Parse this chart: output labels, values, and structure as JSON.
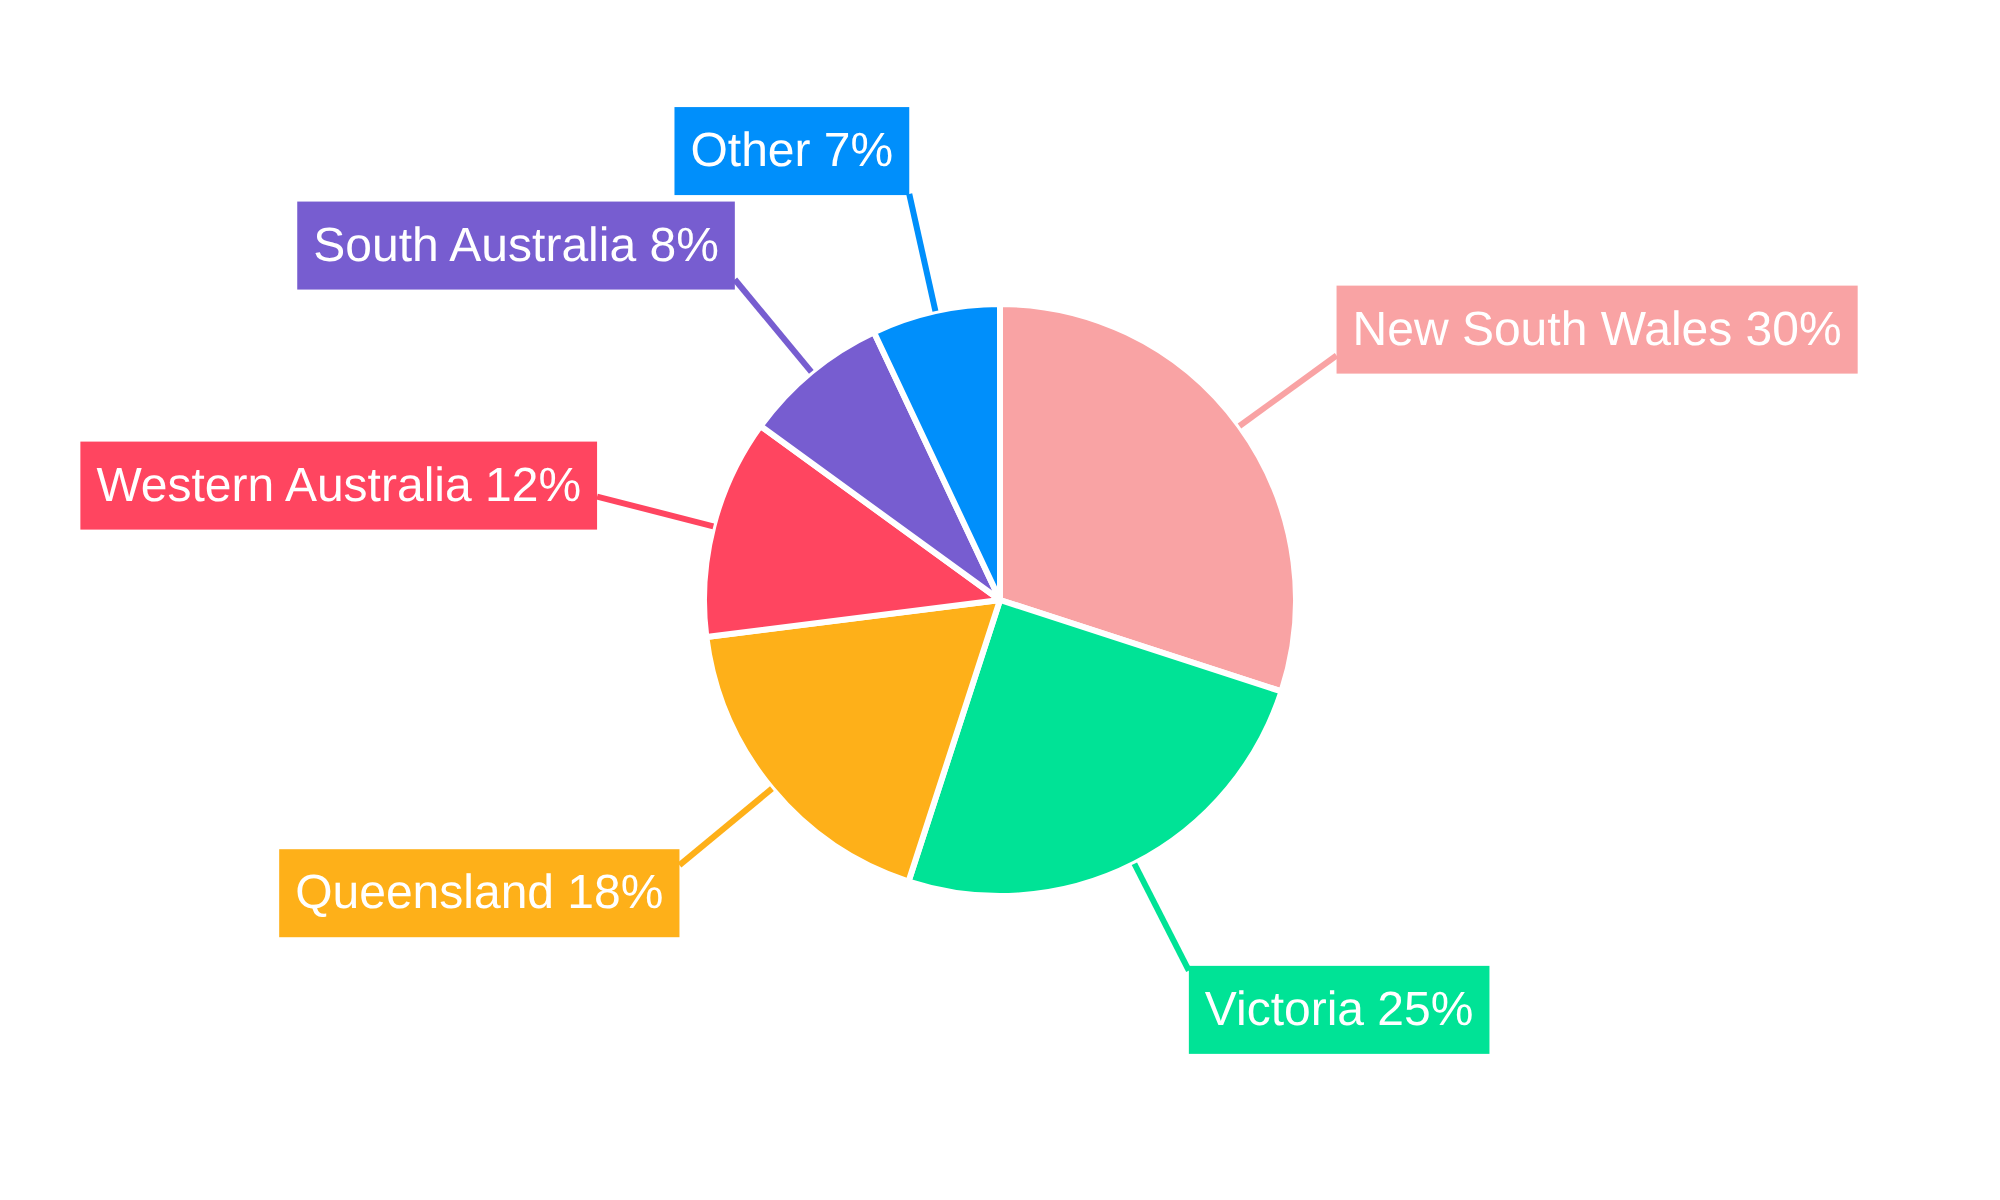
{
  "chart_data": {
    "type": "pie",
    "categories": [
      "New South Wales",
      "Victoria",
      "Queensland",
      "Western Australia",
      "South Australia",
      "Other"
    ],
    "values": [
      30,
      25,
      18,
      12,
      8,
      7
    ],
    "value_labels": [
      "30%",
      "25%",
      "18%",
      "12%",
      "8%",
      "7%"
    ],
    "colors": [
      "#f9a3a4",
      "#00e396",
      "#feb019",
      "#ff4560",
      "#775dd0",
      "#008ffb"
    ]
  }
}
